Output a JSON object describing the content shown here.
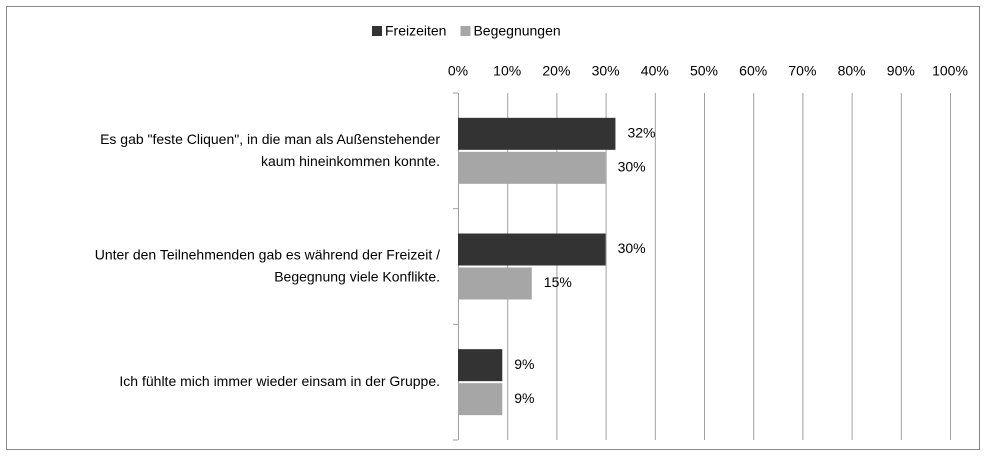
{
  "chart_data": {
    "type": "bar",
    "orientation": "horizontal",
    "categories": [
      [
        "Es gab \"feste Cliquen\", in die man als Außenstehender",
        "kaum hineinkommen konnte."
      ],
      [
        "Unter den Teilnehmenden gab es während der Freizeit /",
        "Begegnung viele Konflikte."
      ],
      [
        "Ich fühlte mich immer wieder einsam in der Gruppe."
      ]
    ],
    "series": [
      {
        "name": "Freizeiten",
        "color": "#333333",
        "values": [
          32,
          30,
          9
        ],
        "value_labels": [
          "32%",
          "30%",
          "9%"
        ]
      },
      {
        "name": "Begegnungen",
        "color": "#a6a6a6",
        "values": [
          30,
          15,
          9
        ],
        "value_labels": [
          "30%",
          "15%",
          "9%"
        ]
      }
    ],
    "xlim": [
      0,
      100
    ],
    "xticks": [
      {
        "value": 0,
        "label": "0%"
      },
      {
        "value": 10,
        "label": "10%"
      },
      {
        "value": 20,
        "label": "20%"
      },
      {
        "value": 30,
        "label": "30%"
      },
      {
        "value": 40,
        "label": "40%"
      },
      {
        "value": 50,
        "label": "50%"
      },
      {
        "value": 60,
        "label": "60%"
      },
      {
        "value": 70,
        "label": "70%"
      },
      {
        "value": 80,
        "label": "80%"
      },
      {
        "value": 90,
        "label": "90%"
      },
      {
        "value": 100,
        "label": "100%"
      }
    ],
    "grid": true,
    "legend": "top"
  }
}
